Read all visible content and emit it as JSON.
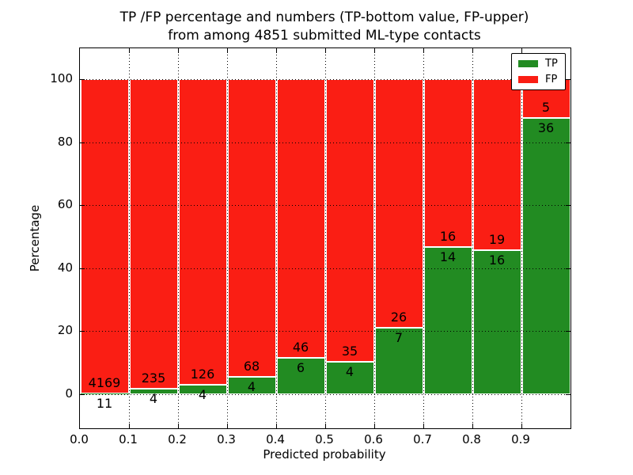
{
  "chart_data": {
    "type": "bar",
    "stacked": true,
    "normalized": "percent_of_bin_total",
    "title_line1": "TP /FP percentage and numbers (TP-bottom value, FP-upper)",
    "title_line2": "from among 4851 submitted ML-type contacts",
    "title": "TP /FP percentage and numbers (TP-bottom value, FP-upper) from among 4851 submitted ML-type contacts",
    "xlabel": "Predicted probability",
    "ylabel": "Percentage",
    "total_contacts": 4851,
    "x_bin_edges": [
      0.0,
      0.1,
      0.2,
      0.3,
      0.4,
      0.5,
      0.6,
      0.7,
      0.8,
      0.9,
      1.0
    ],
    "x_tick_labels": [
      "0.0",
      "0.1",
      "0.2",
      "0.3",
      "0.4",
      "0.5",
      "0.6",
      "0.7",
      "0.8",
      "0.9"
    ],
    "y_ticks": [
      0,
      20,
      40,
      60,
      80,
      100
    ],
    "y_tick_labels": [
      "0",
      "20",
      "40",
      "60",
      "80",
      "100"
    ],
    "grid": "dotted-both-axes",
    "legend_position": "upper-right",
    "series": [
      {
        "name": "TP",
        "color": "#228b22",
        "counts": [
          11,
          4,
          4,
          4,
          6,
          4,
          7,
          14,
          16,
          36
        ]
      },
      {
        "name": "FP",
        "color": "#fa1e14",
        "counts": [
          4169,
          235,
          126,
          68,
          46,
          35,
          26,
          16,
          19,
          5
        ]
      }
    ],
    "tp_percent_by_bin": [
      0.26,
      1.67,
      3.08,
      5.56,
      11.54,
      10.26,
      21.21,
      46.67,
      45.71,
      87.8
    ]
  }
}
